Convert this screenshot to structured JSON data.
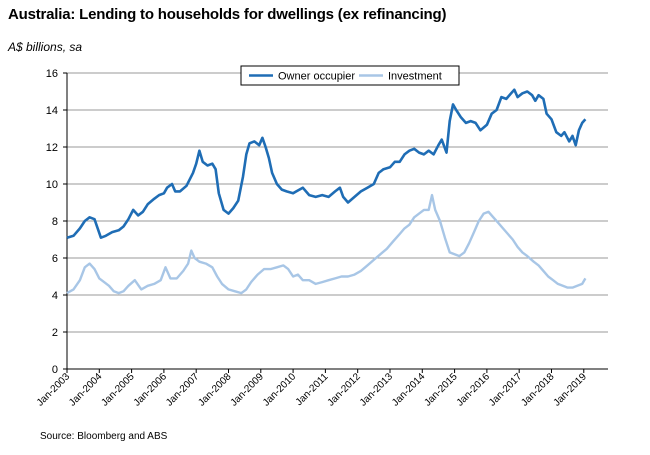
{
  "chart_data": {
    "type": "line",
    "title": "Australia: Lending to households for dwellings (ex refinancing)",
    "ylabel": "A$ billions, sa",
    "source": "Source: Bloomberg and ABS",
    "ylim": [
      0,
      16
    ],
    "yticks": [
      0,
      2,
      4,
      6,
      8,
      10,
      12,
      14,
      16
    ],
    "xlim": [
      2003.0,
      2019.75
    ],
    "xtick_labels": [
      "Jan-2003",
      "Jan-2004",
      "Jan-2005",
      "Jan-2006",
      "Jan-2007",
      "Jan-2008",
      "Jan-2009",
      "Jan-2010",
      "Jan-2011",
      "Jan-2012",
      "Jan-2013",
      "Jan-2014",
      "Jan-2015",
      "Jan-2016",
      "Jan-2017",
      "Jan-2018",
      "Jan-2019"
    ],
    "grid": "horizontal",
    "legend_position": "top-center",
    "colors": {
      "owner": "#1f6db5",
      "investment": "#a8c6e6"
    },
    "series": [
      {
        "name": "Owner occupier",
        "points": [
          [
            2003.0,
            7.1
          ],
          [
            2003.2,
            7.2
          ],
          [
            2003.4,
            7.6
          ],
          [
            2003.55,
            8.0
          ],
          [
            2003.7,
            8.2
          ],
          [
            2003.85,
            8.1
          ],
          [
            2003.95,
            7.6
          ],
          [
            2004.05,
            7.1
          ],
          [
            2004.2,
            7.2
          ],
          [
            2004.4,
            7.4
          ],
          [
            2004.6,
            7.5
          ],
          [
            2004.75,
            7.7
          ],
          [
            2004.9,
            8.1
          ],
          [
            2005.05,
            8.6
          ],
          [
            2005.2,
            8.3
          ],
          [
            2005.35,
            8.5
          ],
          [
            2005.5,
            8.9
          ],
          [
            2005.7,
            9.2
          ],
          [
            2005.85,
            9.4
          ],
          [
            2006.0,
            9.5
          ],
          [
            2006.1,
            9.8
          ],
          [
            2006.25,
            10.0
          ],
          [
            2006.35,
            9.6
          ],
          [
            2006.5,
            9.6
          ],
          [
            2006.7,
            9.9
          ],
          [
            2006.9,
            10.6
          ],
          [
            2007.0,
            11.1
          ],
          [
            2007.1,
            11.8
          ],
          [
            2007.2,
            11.2
          ],
          [
            2007.35,
            11.0
          ],
          [
            2007.5,
            11.1
          ],
          [
            2007.6,
            10.8
          ],
          [
            2007.7,
            9.5
          ],
          [
            2007.85,
            8.6
          ],
          [
            2008.0,
            8.4
          ],
          [
            2008.15,
            8.7
          ],
          [
            2008.3,
            9.1
          ],
          [
            2008.45,
            10.4
          ],
          [
            2008.55,
            11.6
          ],
          [
            2008.65,
            12.2
          ],
          [
            2008.8,
            12.3
          ],
          [
            2008.95,
            12.1
          ],
          [
            2009.05,
            12.5
          ],
          [
            2009.15,
            12.0
          ],
          [
            2009.25,
            11.4
          ],
          [
            2009.35,
            10.6
          ],
          [
            2009.5,
            10.0
          ],
          [
            2009.65,
            9.7
          ],
          [
            2009.8,
            9.6
          ],
          [
            2010.0,
            9.5
          ],
          [
            2010.1,
            9.6
          ],
          [
            2010.3,
            9.8
          ],
          [
            2010.5,
            9.4
          ],
          [
            2010.7,
            9.3
          ],
          [
            2010.9,
            9.4
          ],
          [
            2011.1,
            9.3
          ],
          [
            2011.3,
            9.6
          ],
          [
            2011.45,
            9.8
          ],
          [
            2011.55,
            9.3
          ],
          [
            2011.7,
            9.0
          ],
          [
            2011.9,
            9.3
          ],
          [
            2012.1,
            9.6
          ],
          [
            2012.3,
            9.8
          ],
          [
            2012.5,
            10.0
          ],
          [
            2012.65,
            10.6
          ],
          [
            2012.8,
            10.8
          ],
          [
            2013.0,
            10.9
          ],
          [
            2013.15,
            11.2
          ],
          [
            2013.3,
            11.2
          ],
          [
            2013.45,
            11.6
          ],
          [
            2013.6,
            11.8
          ],
          [
            2013.75,
            11.9
          ],
          [
            2013.9,
            11.7
          ],
          [
            2014.05,
            11.6
          ],
          [
            2014.2,
            11.8
          ],
          [
            2014.35,
            11.6
          ],
          [
            2014.5,
            12.1
          ],
          [
            2014.6,
            12.4
          ],
          [
            2014.75,
            11.7
          ],
          [
            2014.85,
            13.4
          ],
          [
            2014.95,
            14.3
          ],
          [
            2015.05,
            14.0
          ],
          [
            2015.2,
            13.6
          ],
          [
            2015.35,
            13.3
          ],
          [
            2015.5,
            13.4
          ],
          [
            2015.65,
            13.3
          ],
          [
            2015.8,
            12.9
          ],
          [
            2016.0,
            13.2
          ],
          [
            2016.15,
            13.8
          ],
          [
            2016.3,
            14.0
          ],
          [
            2016.45,
            14.7
          ],
          [
            2016.6,
            14.6
          ],
          [
            2016.75,
            14.9
          ],
          [
            2016.85,
            15.1
          ],
          [
            2016.95,
            14.7
          ],
          [
            2017.1,
            14.9
          ],
          [
            2017.25,
            15.0
          ],
          [
            2017.4,
            14.8
          ],
          [
            2017.5,
            14.5
          ],
          [
            2017.6,
            14.8
          ],
          [
            2017.75,
            14.6
          ],
          [
            2017.85,
            13.8
          ],
          [
            2018.0,
            13.5
          ],
          [
            2018.15,
            12.8
          ],
          [
            2018.3,
            12.6
          ],
          [
            2018.4,
            12.8
          ],
          [
            2018.55,
            12.3
          ],
          [
            2018.65,
            12.6
          ],
          [
            2018.75,
            12.1
          ],
          [
            2018.85,
            12.9
          ],
          [
            2018.95,
            13.3
          ],
          [
            2019.05,
            13.5
          ]
        ]
      },
      {
        "name": "Investment",
        "points": [
          [
            2003.0,
            4.1
          ],
          [
            2003.2,
            4.3
          ],
          [
            2003.4,
            4.8
          ],
          [
            2003.55,
            5.5
          ],
          [
            2003.7,
            5.7
          ],
          [
            2003.85,
            5.4
          ],
          [
            2004.0,
            4.9
          ],
          [
            2004.15,
            4.7
          ],
          [
            2004.3,
            4.5
          ],
          [
            2004.45,
            4.2
          ],
          [
            2004.6,
            4.1
          ],
          [
            2004.75,
            4.2
          ],
          [
            2004.9,
            4.5
          ],
          [
            2005.1,
            4.8
          ],
          [
            2005.3,
            4.3
          ],
          [
            2005.5,
            4.5
          ],
          [
            2005.7,
            4.6
          ],
          [
            2005.9,
            4.8
          ],
          [
            2006.05,
            5.5
          ],
          [
            2006.2,
            4.9
          ],
          [
            2006.4,
            4.9
          ],
          [
            2006.6,
            5.3
          ],
          [
            2006.75,
            5.7
          ],
          [
            2006.85,
            6.4
          ],
          [
            2006.95,
            6.0
          ],
          [
            2007.1,
            5.8
          ],
          [
            2007.3,
            5.7
          ],
          [
            2007.5,
            5.5
          ],
          [
            2007.65,
            5.0
          ],
          [
            2007.8,
            4.6
          ],
          [
            2008.0,
            4.3
          ],
          [
            2008.2,
            4.2
          ],
          [
            2008.4,
            4.1
          ],
          [
            2008.55,
            4.3
          ],
          [
            2008.7,
            4.7
          ],
          [
            2008.9,
            5.1
          ],
          [
            2009.1,
            5.4
          ],
          [
            2009.3,
            5.4
          ],
          [
            2009.5,
            5.5
          ],
          [
            2009.7,
            5.6
          ],
          [
            2009.85,
            5.4
          ],
          [
            2010.0,
            5.0
          ],
          [
            2010.15,
            5.1
          ],
          [
            2010.3,
            4.8
          ],
          [
            2010.5,
            4.8
          ],
          [
            2010.7,
            4.6
          ],
          [
            2010.9,
            4.7
          ],
          [
            2011.1,
            4.8
          ],
          [
            2011.3,
            4.9
          ],
          [
            2011.5,
            5.0
          ],
          [
            2011.7,
            5.0
          ],
          [
            2011.9,
            5.1
          ],
          [
            2012.1,
            5.3
          ],
          [
            2012.3,
            5.6
          ],
          [
            2012.5,
            5.9
          ],
          [
            2012.7,
            6.2
          ],
          [
            2012.9,
            6.5
          ],
          [
            2013.1,
            6.9
          ],
          [
            2013.3,
            7.3
          ],
          [
            2013.45,
            7.6
          ],
          [
            2013.6,
            7.8
          ],
          [
            2013.75,
            8.2
          ],
          [
            2013.9,
            8.4
          ],
          [
            2014.05,
            8.6
          ],
          [
            2014.2,
            8.6
          ],
          [
            2014.3,
            9.4
          ],
          [
            2014.4,
            8.6
          ],
          [
            2014.55,
            8.0
          ],
          [
            2014.7,
            7.1
          ],
          [
            2014.85,
            6.3
          ],
          [
            2015.0,
            6.2
          ],
          [
            2015.15,
            6.1
          ],
          [
            2015.3,
            6.3
          ],
          [
            2015.45,
            6.8
          ],
          [
            2015.6,
            7.4
          ],
          [
            2015.75,
            8.0
          ],
          [
            2015.9,
            8.4
          ],
          [
            2016.05,
            8.5
          ],
          [
            2016.2,
            8.2
          ],
          [
            2016.35,
            7.9
          ],
          [
            2016.5,
            7.6
          ],
          [
            2016.65,
            7.3
          ],
          [
            2016.8,
            7.0
          ],
          [
            2016.95,
            6.6
          ],
          [
            2017.1,
            6.3
          ],
          [
            2017.25,
            6.1
          ],
          [
            2017.45,
            5.8
          ],
          [
            2017.6,
            5.6
          ],
          [
            2017.75,
            5.3
          ],
          [
            2017.9,
            5.0
          ],
          [
            2018.05,
            4.8
          ],
          [
            2018.2,
            4.6
          ],
          [
            2018.35,
            4.5
          ],
          [
            2018.5,
            4.4
          ],
          [
            2018.65,
            4.4
          ],
          [
            2018.8,
            4.5
          ],
          [
            2018.95,
            4.6
          ],
          [
            2019.05,
            4.9
          ]
        ]
      }
    ]
  }
}
